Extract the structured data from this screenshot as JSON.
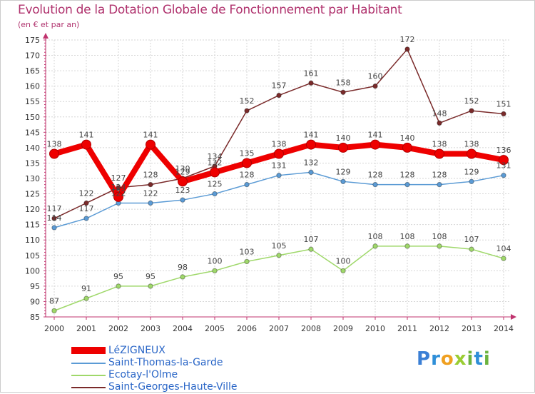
{
  "header": {
    "title": "Evolution de la Dotation Globale de Fonctionnement par Habitant",
    "subtitle": "(en € et par an)"
  },
  "brand": {
    "text": "Proxiti"
  },
  "colors": {
    "title": "#b0336e",
    "axis": "#c0336e",
    "grid": "#d6d6d6",
    "plot_bg": "#ffffff",
    "legend_text": "#2a66c7"
  },
  "chart_data": {
    "type": "line",
    "title": "Evolution de la Dotation Globale de Fonctionnement par Habitant",
    "subtitle": "(en € et par an)",
    "xlabel": "",
    "ylabel": "",
    "ylim": [
      85,
      175
    ],
    "y_ticks": [
      85,
      90,
      95,
      100,
      105,
      110,
      115,
      120,
      125,
      130,
      135,
      140,
      145,
      150,
      155,
      160,
      165,
      170,
      175
    ],
    "grid": true,
    "legend_position": "bottom-left",
    "categories": [
      "2000",
      "2001",
      "2002",
      "2003",
      "2004",
      "2005",
      "2006",
      "2007",
      "2008",
      "2009",
      "2010",
      "2011",
      "2012",
      "2013",
      "2014"
    ],
    "series": [
      {
        "name": "LéZIGNEUX",
        "color": "#ee0000",
        "thick": true,
        "values": [
          138,
          141,
          124,
          141,
          129,
          132,
          135,
          138,
          141,
          140,
          141,
          140,
          138,
          138,
          136
        ],
        "labels": [
          "138",
          "141",
          "124",
          "141",
          "129",
          "132",
          "135",
          "138",
          "141",
          "140",
          "141",
          "140",
          "138",
          "138",
          "136"
        ]
      },
      {
        "name": "Saint-Thomas-la-Garde",
        "color": "#5b9bd5",
        "thick": false,
        "values": [
          114,
          117,
          122,
          122,
          123,
          125,
          128,
          131,
          132,
          129,
          128,
          128,
          128,
          129,
          131
        ],
        "labels": [
          "114",
          "117",
          "122",
          "122",
          "123",
          "125",
          "128",
          "131",
          "132",
          "129",
          "128",
          "128",
          "128",
          "129",
          "131"
        ]
      },
      {
        "name": "Ecotay-l'Olme",
        "color": "#9fd86a",
        "thick": false,
        "values": [
          87,
          91,
          95,
          95,
          98,
          100,
          103,
          105,
          107,
          100,
          108,
          108,
          108,
          107,
          104
        ],
        "labels": [
          "87",
          "91",
          "95",
          "95",
          "98",
          "100",
          "103",
          "105",
          "107",
          "100",
          "108",
          "108",
          "108",
          "107",
          "104"
        ]
      },
      {
        "name": "Saint-Georges-Haute-Ville",
        "color": "#7a2a2a",
        "thick": false,
        "values": [
          117,
          122,
          127,
          128,
          130,
          134,
          152,
          157,
          161,
          158,
          160,
          172,
          148,
          152,
          151
        ],
        "labels": [
          "117",
          "122",
          "127",
          "128",
          "130",
          "134",
          "152",
          "157",
          "161",
          "158",
          "160",
          "172",
          "148",
          "152",
          "151"
        ]
      }
    ]
  }
}
